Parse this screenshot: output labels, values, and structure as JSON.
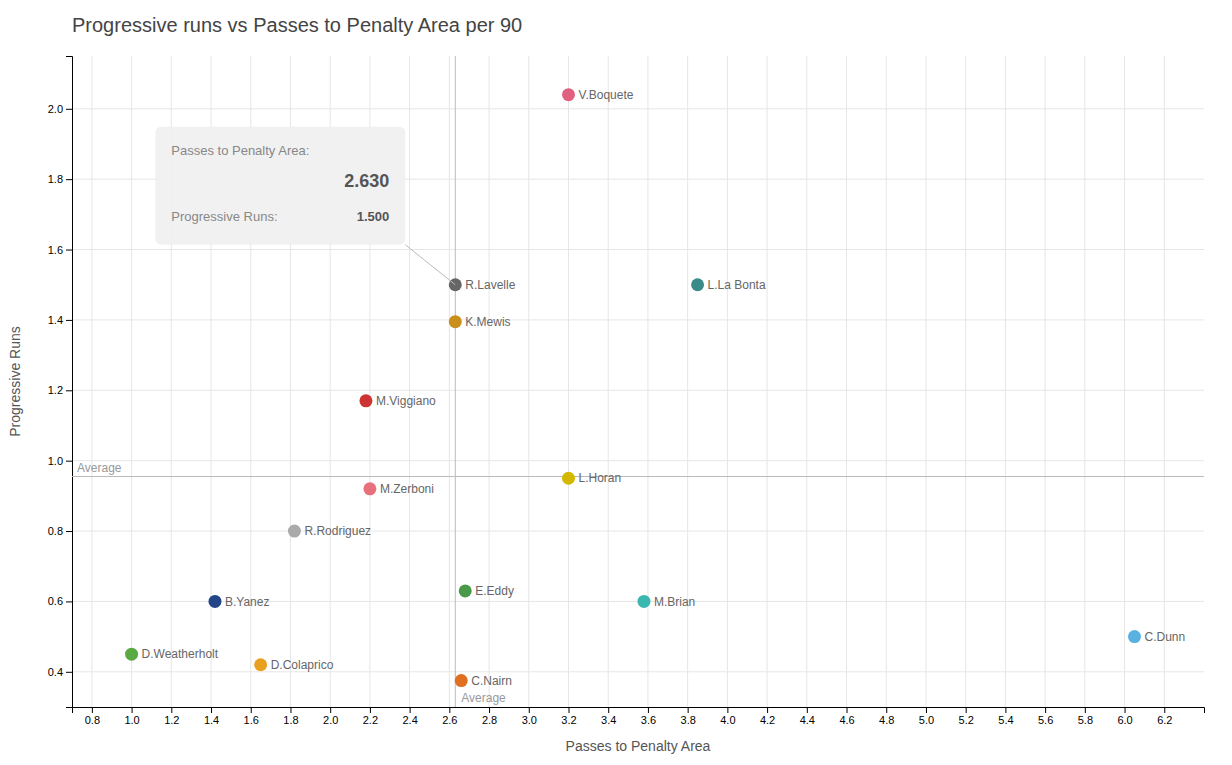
{
  "chart_data": {
    "type": "scatter",
    "title": "Progressive runs vs Passes to Penalty Area per 90",
    "xlabel": "Passes to Penalty Area",
    "ylabel": "Progressive Runs",
    "xlim": [
      0.7,
      6.4
    ],
    "ylim": [
      0.3,
      2.15
    ],
    "xticks": [
      0.8,
      {
        "value": 1.0,
        "label": "1.0"
      },
      1.2,
      1.4,
      1.6,
      1.8,
      {
        "value": 2.0,
        "label": "2.0"
      },
      2.2,
      2.4,
      2.6,
      2.8,
      {
        "value": 3.0,
        "label": "3.0"
      },
      3.2,
      3.4,
      3.6,
      3.8,
      {
        "value": 4.0,
        "label": "4.0"
      },
      4.2,
      4.4,
      4.6,
      4.8,
      {
        "value": 5.0,
        "label": "5.0"
      },
      5.2,
      5.4,
      5.6,
      5.8,
      {
        "value": 6.0,
        "label": "6.0"
      },
      6.2
    ],
    "yticks": [
      0.4,
      0.6,
      0.8,
      {
        "value": 1.0,
        "label": "1.0"
      },
      1.2,
      1.4,
      1.6,
      1.8,
      {
        "value": 2.0,
        "label": "2.0"
      }
    ],
    "grid": true,
    "x": [
      3.2,
      2.63,
      2.63,
      3.85,
      2.18,
      2.2,
      3.2,
      1.82,
      2.68,
      3.58,
      1.42,
      1.0,
      1.65,
      2.66,
      6.05
    ],
    "values": [
      2.04,
      1.5,
      1.395,
      1.5,
      1.17,
      0.92,
      0.95,
      0.8,
      0.63,
      0.6,
      0.6,
      0.45,
      0.42,
      0.375,
      0.5
    ],
    "point_labels": [
      "V.Boquete",
      "R.Lavelle",
      "K.Mewis",
      "L.La Bonta",
      "M.Viggiano",
      "M.Zerboni",
      "L.Horan",
      "R.Rodriguez",
      "E.Eddy",
      "M.Brian",
      "B.Yanez",
      "D.Weatherholt",
      "D.Colaprico",
      "C.Nairn",
      "C.Dunn"
    ],
    "colors": [
      "#e06080",
      "#666666",
      "#c8901a",
      "#3a8a8a",
      "#cc3333",
      "#e8707a",
      "#d4b800",
      "#aaaaaa",
      "#4a9a4a",
      "#3ab8b0",
      "#224488",
      "#5aaa44",
      "#e8a020",
      "#e07020",
      "#5ab0e0"
    ],
    "reference_lines": [
      {
        "axis": "x",
        "value": 2.63,
        "label": "Average"
      },
      {
        "axis": "y",
        "value": 0.955,
        "label": "Average"
      }
    ],
    "tooltip": {
      "x": 2.63,
      "y": 1.5,
      "x_text": "Passes to Penalty Area:",
      "x_label": "2.630",
      "y_text": "Progressive Runs: ",
      "y_label": "1.500"
    }
  }
}
